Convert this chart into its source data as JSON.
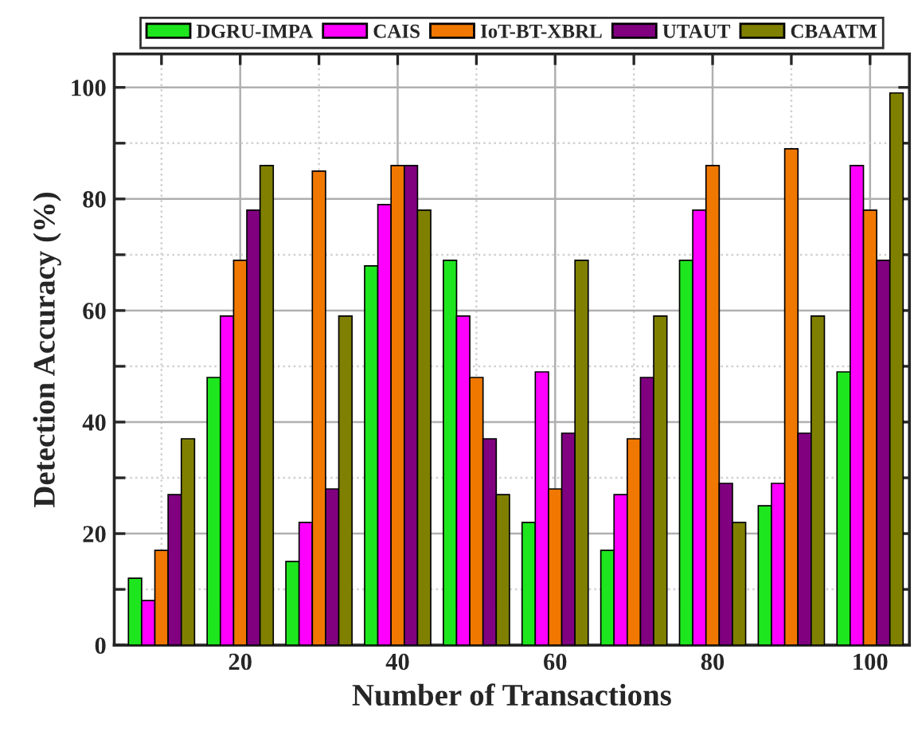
{
  "chart_data": {
    "type": "bar",
    "xlabel": "Number of Transactions",
    "ylabel": "Detection Accuracy (%)",
    "x": [
      10,
      20,
      30,
      40,
      50,
      60,
      70,
      80,
      90,
      100
    ],
    "series": [
      {
        "name": "DGRU-IMPA",
        "color": "#1ee61e",
        "values": [
          12,
          48,
          15,
          68,
          69,
          22,
          17,
          69,
          25,
          49
        ]
      },
      {
        "name": "CAIS",
        "color": "#ff00ff",
        "values": [
          8,
          59,
          22,
          79,
          59,
          49,
          27,
          78,
          29,
          86
        ]
      },
      {
        "name": "IoT-BT-XBRL",
        "color": "#f07800",
        "values": [
          17,
          69,
          85,
          86,
          48,
          28,
          37,
          86,
          89,
          78
        ]
      },
      {
        "name": "UTAUT",
        "color": "#800080",
        "values": [
          27,
          78,
          28,
          86,
          37,
          38,
          48,
          29,
          38,
          69
        ]
      },
      {
        "name": "CBAATM",
        "color": "#808000",
        "values": [
          37,
          86,
          59,
          78,
          27,
          69,
          59,
          22,
          59,
          99
        ]
      }
    ],
    "xlim": [
      4,
      105
    ],
    "ylim": [
      0,
      106
    ],
    "xticks": [
      {
        "value": 10,
        "label": null
      },
      20,
      {
        "value": 30,
        "label": null
      },
      40,
      {
        "value": 50,
        "label": null
      },
      60,
      {
        "value": 70,
        "label": null
      },
      80,
      {
        "value": 90,
        "label": null
      },
      100
    ],
    "yticks": [
      0,
      {
        "value": 10,
        "label": null
      },
      20,
      {
        "value": 30,
        "label": null
      },
      40,
      {
        "value": 50,
        "label": null
      },
      60,
      {
        "value": 70,
        "label": null
      },
      80,
      {
        "value": 90,
        "label": null
      },
      100
    ],
    "grid": true,
    "legend": "top"
  }
}
